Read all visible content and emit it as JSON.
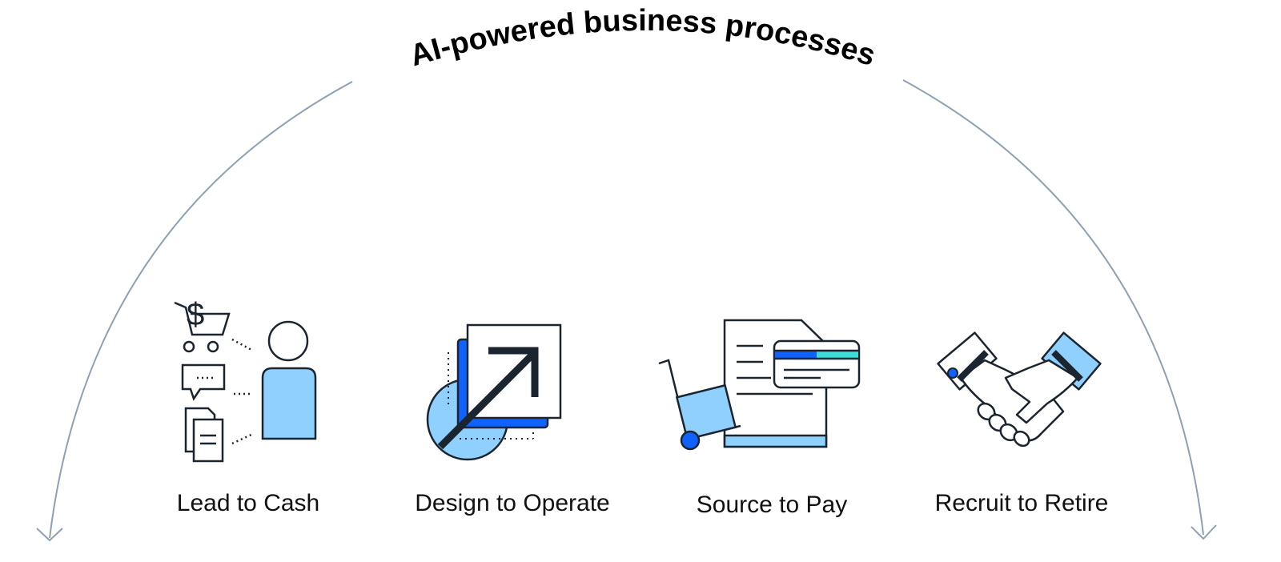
{
  "title": "AI-powered business processes",
  "colors": {
    "arc": "#8fa0b3",
    "stroke": "#1b2530",
    "light_blue": "#8fd0ff",
    "blue": "#0f62fe",
    "teal": "#3ddbd9"
  },
  "processes": [
    {
      "label": "Lead to Cash",
      "icon": "shopping-cart-customer-icon"
    },
    {
      "label": "Design to Operate",
      "icon": "scale-arrow-icon"
    },
    {
      "label": "Source to Pay",
      "icon": "cart-invoice-card-icon"
    },
    {
      "label": "Recruit to Retire",
      "icon": "handshake-icon"
    }
  ]
}
